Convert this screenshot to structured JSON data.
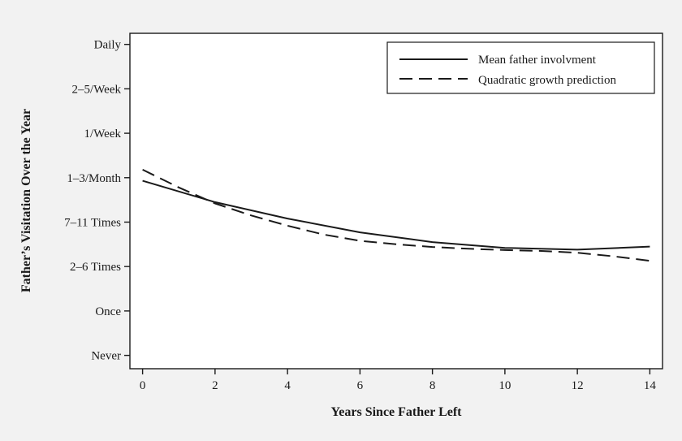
{
  "chart_data": {
    "type": "line",
    "xlabel": "Years Since Father Left",
    "ylabel": "Father’s Visitation Over the Year",
    "xlim": [
      -0.35,
      14.35
    ],
    "ylim": [
      -0.3,
      7.25
    ],
    "x_ticks": [
      0,
      2,
      4,
      6,
      8,
      10,
      12,
      14
    ],
    "y_ticks": [
      {
        "value": 0,
        "label": "Never"
      },
      {
        "value": 1,
        "label": "Once"
      },
      {
        "value": 2,
        "label": "2–6 Times"
      },
      {
        "value": 3,
        "label": "7–11 Times"
      },
      {
        "value": 4,
        "label": "1–3/Month"
      },
      {
        "value": 5,
        "label": "1/Week"
      },
      {
        "value": 6,
        "label": "2–5/Week"
      },
      {
        "value": 7,
        "label": "Daily"
      }
    ],
    "grid": false,
    "legend": {
      "position": "top-right"
    },
    "series": [
      {
        "name": "Mean father involvment",
        "style": "solid",
        "x": [
          0,
          2,
          4,
          6,
          8,
          10,
          12,
          14
        ],
        "y": [
          3.93,
          3.45,
          3.08,
          2.77,
          2.55,
          2.42,
          2.38,
          2.45
        ]
      },
      {
        "name": "Quadratic growth prediction",
        "style": "dashed",
        "x": [
          0,
          1,
          2,
          3,
          4,
          5,
          6,
          7,
          8,
          9,
          10,
          11,
          12,
          13,
          14
        ],
        "y": [
          4.18,
          3.78,
          3.42,
          3.15,
          2.92,
          2.72,
          2.58,
          2.5,
          2.44,
          2.4,
          2.37,
          2.35,
          2.31,
          2.23,
          2.13
        ]
      }
    ]
  }
}
